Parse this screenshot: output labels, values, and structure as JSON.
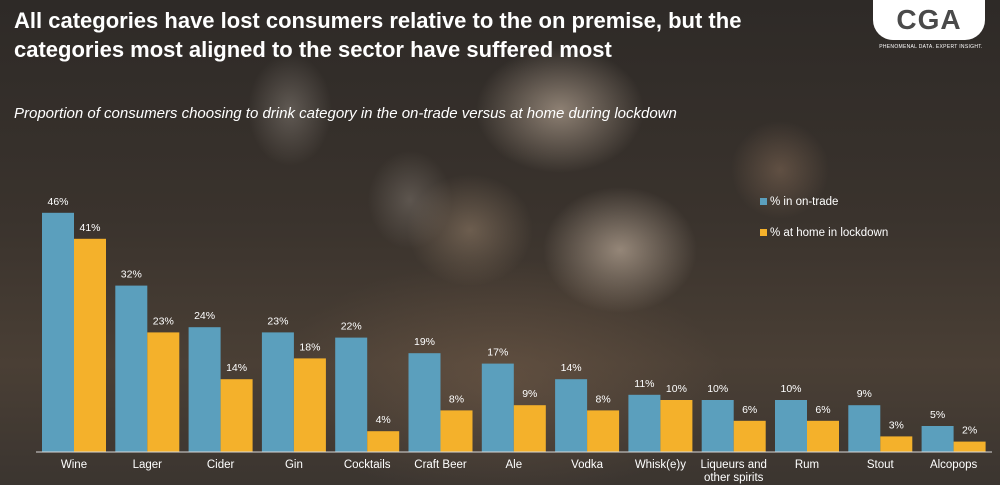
{
  "header": {
    "title": "All categories have lost consumers relative to the on premise, but the categories most aligned to the sector have suffered most",
    "logo_text": "CGA",
    "logo_tagline": "PHENOMENAL DATA. EXPERT INSIGHT."
  },
  "chart_data": {
    "type": "bar",
    "title": "Proportion of consumers choosing to drink category in the on-trade versus at home during lockdown",
    "categories": [
      "Wine",
      "Lager",
      "Cider",
      "Gin",
      "Cocktails",
      "Craft Beer",
      "Ale",
      "Vodka",
      "Whisk(e)y",
      "Liqueurs and other spirits",
      "Rum",
      "Stout",
      "Alcopops"
    ],
    "category_lines": [
      [
        "Wine"
      ],
      [
        "Lager"
      ],
      [
        "Cider"
      ],
      [
        "Gin"
      ],
      [
        "Cocktails"
      ],
      [
        "Craft Beer"
      ],
      [
        "Ale"
      ],
      [
        "Vodka"
      ],
      [
        "Whisk(e)y"
      ],
      [
        "Liqueurs and",
        "other spirits"
      ],
      [
        "Rum"
      ],
      [
        "Stout"
      ],
      [
        "Alcopops"
      ]
    ],
    "series": [
      {
        "name": "% in on-trade",
        "color": "#5b9fbd",
        "values": [
          46,
          32,
          24,
          23,
          22,
          19,
          17,
          14,
          11,
          10,
          10,
          9,
          5
        ]
      },
      {
        "name": "% at home in lockdown",
        "color": "#f4b12b",
        "values": [
          41,
          23,
          14,
          18,
          4,
          8,
          9,
          8,
          10,
          6,
          6,
          3,
          2
        ]
      }
    ],
    "value_suffix": "%",
    "ylim": [
      0,
      50
    ],
    "grid": false,
    "legend_position": "right"
  }
}
